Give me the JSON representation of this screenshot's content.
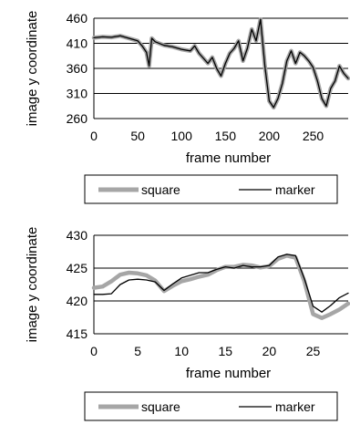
{
  "chart_data": [
    {
      "type": "line",
      "xlabel": "frame number",
      "ylabel": "image y coordinate",
      "xlim": [
        0,
        290
      ],
      "ylim": [
        260,
        460
      ],
      "xticks": [
        0,
        50,
        100,
        150,
        200,
        250
      ],
      "yticks": [
        260,
        310,
        360,
        410,
        460
      ],
      "xtick_labels": [
        "0",
        "50",
        "100",
        "150",
        "200",
        "250"
      ],
      "ytick_labels": [
        "260",
        "310",
        "360",
        "410",
        "460"
      ],
      "grid": "horizontal",
      "legend_position": "bottom",
      "series": [
        {
          "name": "square",
          "color": "#a6a6a6",
          "x": [
            0,
            10,
            20,
            30,
            40,
            50,
            55,
            60,
            63,
            66,
            70,
            80,
            90,
            100,
            110,
            115,
            120,
            125,
            130,
            135,
            140,
            145,
            150,
            155,
            160,
            165,
            170,
            175,
            180,
            185,
            190,
            195,
            200,
            205,
            210,
            215,
            220,
            225,
            230,
            235,
            240,
            245,
            250,
            255,
            260,
            265,
            270,
            275,
            280,
            285,
            290
          ],
          "y": [
            421,
            423,
            422,
            425,
            420,
            415,
            405,
            392,
            365,
            420,
            413,
            406,
            403,
            398,
            395,
            405,
            390,
            380,
            370,
            382,
            360,
            345,
            370,
            390,
            400,
            415,
            375,
            400,
            438,
            415,
            458,
            365,
            295,
            282,
            300,
            330,
            375,
            395,
            370,
            392,
            385,
            375,
            362,
            335,
            300,
            285,
            320,
            335,
            365,
            350,
            340
          ]
        },
        {
          "name": "marker",
          "color": "#000000",
          "x": [
            0,
            10,
            20,
            30,
            40,
            50,
            55,
            60,
            63,
            66,
            70,
            80,
            90,
            100,
            110,
            115,
            120,
            125,
            130,
            135,
            140,
            145,
            150,
            155,
            160,
            165,
            170,
            175,
            180,
            185,
            190,
            195,
            200,
            205,
            210,
            215,
            220,
            225,
            230,
            235,
            240,
            245,
            250,
            255,
            260,
            265,
            270,
            275,
            280,
            285,
            290
          ],
          "y": [
            421,
            423,
            422,
            425,
            420,
            415,
            405,
            392,
            365,
            420,
            413,
            406,
            403,
            398,
            395,
            405,
            390,
            380,
            370,
            382,
            360,
            345,
            370,
            390,
            400,
            415,
            375,
            400,
            438,
            415,
            458,
            365,
            295,
            282,
            300,
            330,
            375,
            395,
            370,
            392,
            385,
            375,
            362,
            335,
            300,
            285,
            320,
            335,
            365,
            350,
            340
          ]
        }
      ]
    },
    {
      "type": "line",
      "xlabel": "frame number",
      "ylabel": "image y coordinate",
      "xlim": [
        0,
        29
      ],
      "ylim": [
        415,
        430
      ],
      "xticks": [
        0,
        5,
        10,
        15,
        20,
        25
      ],
      "yticks": [
        415,
        420,
        425,
        430
      ],
      "xtick_labels": [
        "0",
        "5",
        "10",
        "15",
        "20",
        "25"
      ],
      "ytick_labels": [
        "415",
        "420",
        "425",
        "430"
      ],
      "grid": "horizontal",
      "legend_position": "bottom",
      "series": [
        {
          "name": "square",
          "color": "#a6a6a6",
          "x": [
            0,
            1,
            2,
            3,
            4,
            5,
            6,
            7,
            8,
            9,
            10,
            11,
            12,
            13,
            14,
            15,
            16,
            17,
            18,
            19,
            20,
            21,
            22,
            23,
            24,
            25,
            26,
            27,
            28,
            29
          ],
          "y": [
            422,
            422.2,
            423,
            424,
            424.3,
            424.2,
            423.9,
            423.1,
            421.5,
            422.3,
            423,
            423.3,
            423.7,
            424,
            424.7,
            425.2,
            425.2,
            425.5,
            425.4,
            425.1,
            425.3,
            426.4,
            426.9,
            426.6,
            423,
            418,
            417.4,
            418,
            418.7,
            419.6
          ]
        },
        {
          "name": "marker",
          "color": "#000000",
          "x": [
            0,
            1,
            2,
            3,
            4,
            5,
            6,
            7,
            8,
            9,
            10,
            11,
            12,
            13,
            14,
            15,
            16,
            17,
            18,
            19,
            20,
            21,
            22,
            23,
            24,
            25,
            26,
            27,
            28,
            29
          ],
          "y": [
            421,
            421,
            421.1,
            422.5,
            423.2,
            423.3,
            423.2,
            422.9,
            421.6,
            422.6,
            423.5,
            423.9,
            424.3,
            424.3,
            424.8,
            425.2,
            425,
            425.4,
            425.2,
            425.2,
            425.4,
            426.7,
            427.1,
            426.9,
            423.4,
            419.2,
            418.3,
            419.3,
            420.5,
            421.2
          ]
        }
      ]
    }
  ]
}
